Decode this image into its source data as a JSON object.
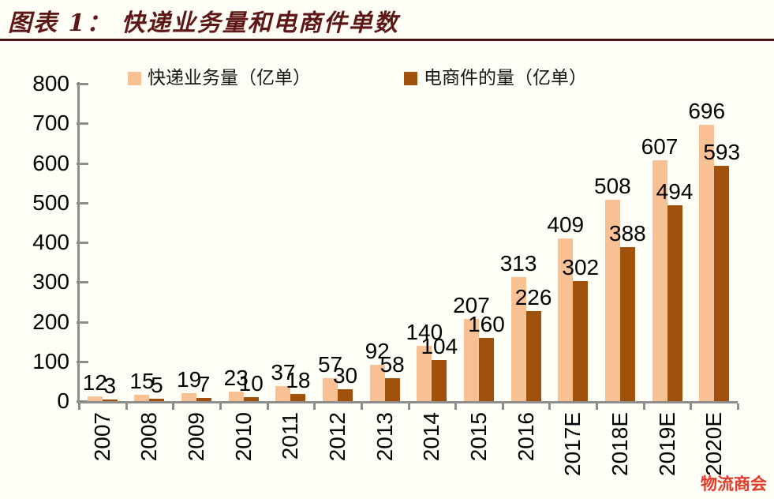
{
  "header": {
    "title": "图表 1： 快递业务量和电商件单数"
  },
  "legend": [
    {
      "label": "快递业务量（亿单）",
      "color": "#F7C193"
    },
    {
      "label": "电商件的量（亿单）",
      "color": "#A0520D"
    }
  ],
  "chart_data": {
    "type": "bar",
    "title": "快递业务量和电商件单数",
    "categories": [
      "2007",
      "2008",
      "2009",
      "2010",
      "2011",
      "2012",
      "2013",
      "2014",
      "2015",
      "2016",
      "2017E",
      "2018E",
      "2019E",
      "2020E"
    ],
    "series": [
      {
        "name": "快递业务量（亿单）",
        "color": "#F7C193",
        "values": [
          12,
          15,
          19,
          23,
          37,
          57,
          92,
          140,
          207,
          313,
          409,
          508,
          607,
          696
        ]
      },
      {
        "name": "电商件的量（亿单）",
        "color": "#A0520D",
        "values": [
          3,
          5,
          7,
          10,
          18,
          30,
          58,
          104,
          160,
          226,
          302,
          388,
          494,
          593
        ]
      }
    ],
    "ylim": [
      0,
      800
    ],
    "y_ticks": [
      0,
      100,
      200,
      300,
      400,
      500,
      600,
      700,
      800
    ],
    "grid": false,
    "legend_position": "top",
    "data_labels": true,
    "axis_color": "#8E8E8E"
  },
  "watermark": {
    "text": "物流商会",
    "color": "#E23B2B"
  }
}
